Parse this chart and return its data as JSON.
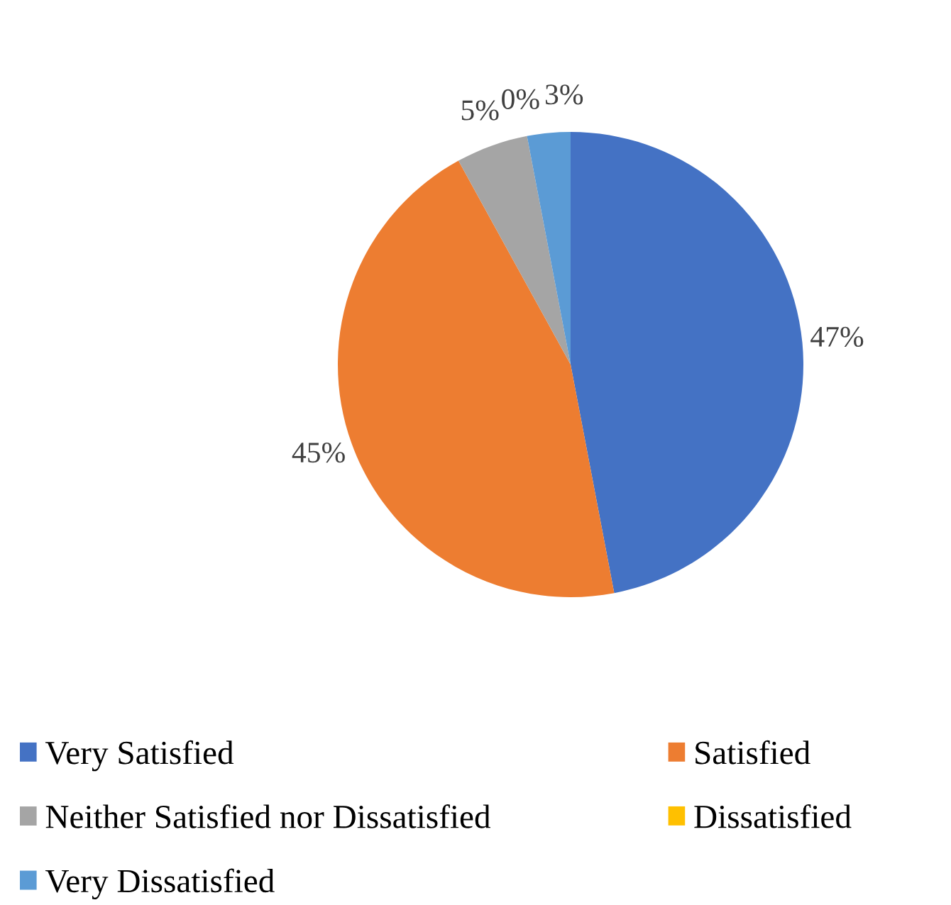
{
  "chart_data": {
    "type": "pie",
    "categories": [
      "Very Satisfied",
      "Satisfied",
      "Neither Satisfied nor Dissatisfied",
      "Dissatisfied",
      "Very Dissatisfied"
    ],
    "values": [
      47,
      45,
      5,
      0,
      3
    ],
    "colors": [
      "#4472c4",
      "#ed7d31",
      "#a5a5a5",
      "#ffc000",
      "#5b9bd5"
    ],
    "value_labels": [
      "47%",
      "45%",
      "5%",
      "0%",
      "3%"
    ],
    "legend": "bottom"
  }
}
